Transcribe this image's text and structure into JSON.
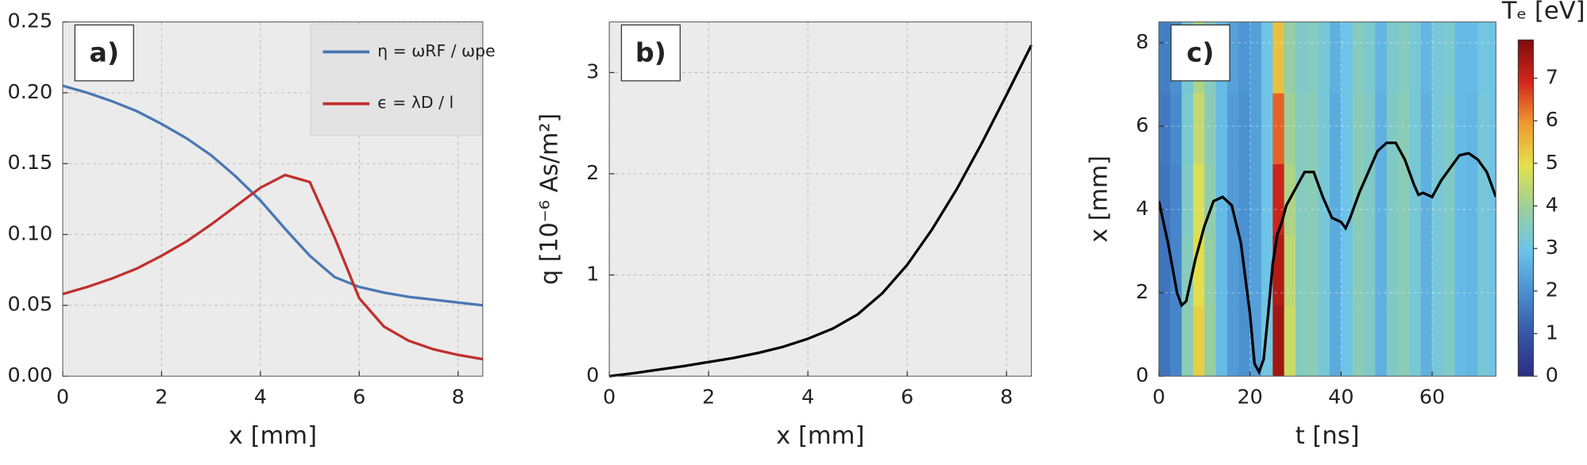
{
  "chart_data": [
    {
      "type": "line",
      "panel_label": "a)",
      "xlabel": "x [mm]",
      "x": [
        0,
        0.5,
        1,
        1.5,
        2,
        2.5,
        3,
        3.5,
        4,
        4.5,
        5,
        5.5,
        6,
        6.5,
        7,
        7.5,
        8,
        8.5
      ],
      "series": [
        {
          "name": "η = ωRF / ωpe",
          "color": "#4a77b4",
          "values": [
            0.205,
            0.2,
            0.194,
            0.187,
            0.178,
            0.168,
            0.156,
            0.141,
            0.124,
            0.104,
            0.085,
            0.07,
            0.063,
            0.059,
            0.056,
            0.054,
            0.052,
            0.05
          ]
        },
        {
          "name": "ϵ = λD / l",
          "color": "#c0302e",
          "values": [
            0.058,
            0.063,
            0.069,
            0.076,
            0.085,
            0.095,
            0.107,
            0.12,
            0.133,
            0.142,
            0.137,
            0.098,
            0.055,
            0.035,
            0.025,
            0.019,
            0.015,
            0.012
          ]
        }
      ],
      "xlim": [
        0,
        8.5
      ],
      "xticks": [
        0,
        2,
        4,
        6,
        8
      ],
      "ylim": [
        0,
        0.25
      ],
      "yticks": [
        {
          "value": 0,
          "label": "0.00"
        },
        0.05,
        {
          "value": 0.1,
          "label": "0.10"
        },
        0.15,
        {
          "value": 0.2,
          "label": "0.20"
        },
        0.25
      ],
      "grid": true,
      "legend": "upper right"
    },
    {
      "type": "line",
      "panel_label": "b)",
      "xlabel": "x [mm]",
      "ylabel": "q [10⁻⁶ As/m²]",
      "x": [
        0,
        0.5,
        1,
        1.5,
        2,
        2.5,
        3,
        3.5,
        4,
        4.5,
        5,
        5.5,
        6,
        6.5,
        7,
        7.5,
        8,
        8.5
      ],
      "series": [
        {
          "color": "#000000",
          "values": [
            0,
            0.03,
            0.065,
            0.1,
            0.14,
            0.18,
            0.23,
            0.29,
            0.37,
            0.47,
            0.61,
            0.82,
            1.1,
            1.45,
            1.85,
            2.3,
            2.78,
            3.27
          ]
        }
      ],
      "xlim": [
        0,
        8.5
      ],
      "xticks": [
        0,
        2,
        4,
        6,
        8
      ],
      "ylim": [
        0,
        3.5
      ],
      "yticks": [
        0,
        1,
        2,
        3
      ],
      "grid": true
    },
    {
      "type": "heatmap",
      "panel_label": "c)",
      "xlabel": "t [ns]",
      "ylabel": "x [mm]",
      "colorbar_label": "Tₑ [eV]",
      "heatmap": {
        "t": [
          1.25,
          3.75,
          6.25,
          8.75,
          11.25,
          13.75,
          16.25,
          18.75,
          21.25,
          23.75,
          26.25,
          28.75,
          31.25,
          33.75,
          36.25,
          38.75,
          41.25,
          43.75,
          46.25,
          48.75,
          51.25,
          53.75,
          56.25,
          58.75,
          61.25,
          63.75,
          66.25,
          68.75,
          71.25,
          73.75
        ],
        "x": [
          0.85,
          2.55,
          4.25,
          5.95,
          7.65
        ],
        "z": [
          [
            1.5,
            1.8,
            3.6,
            5.2,
            3.9,
            2.8,
            2.2,
            2.0,
            2.3,
            3.1,
            7.5,
            4.6,
            3.5,
            3.6,
            3.2,
            2.5,
            3.0,
            3.6,
            3.4,
            2.6,
            3.4,
            3.6,
            3.2,
            2.6,
            3.2,
            3.4,
            2.8,
            2.7,
            3.2,
            3.0
          ],
          [
            1.5,
            1.8,
            3.5,
            5.0,
            3.8,
            2.8,
            2.2,
            2.0,
            2.3,
            3.0,
            7.3,
            4.4,
            3.5,
            3.6,
            3.2,
            2.5,
            3.0,
            3.6,
            3.4,
            2.6,
            3.4,
            3.6,
            3.2,
            2.6,
            3.2,
            3.4,
            2.8,
            2.7,
            3.2,
            3.0
          ],
          [
            1.5,
            1.8,
            3.4,
            4.8,
            3.7,
            2.8,
            2.2,
            2.0,
            2.3,
            3.0,
            7.0,
            4.2,
            3.5,
            3.6,
            3.2,
            2.5,
            3.0,
            3.6,
            3.4,
            2.6,
            3.4,
            3.6,
            3.2,
            2.6,
            3.2,
            3.4,
            2.8,
            2.7,
            3.2,
            3.0
          ],
          [
            1.6,
            1.9,
            3.3,
            4.5,
            3.6,
            2.8,
            2.2,
            2.0,
            2.3,
            3.0,
            6.4,
            4.0,
            3.5,
            3.6,
            3.2,
            2.5,
            3.0,
            3.6,
            3.4,
            2.6,
            3.4,
            3.6,
            3.2,
            2.6,
            3.2,
            3.4,
            2.8,
            2.7,
            3.2,
            3.0
          ],
          [
            1.7,
            2.0,
            3.2,
            4.2,
            3.5,
            2.8,
            2.3,
            2.1,
            2.3,
            3.0,
            5.4,
            3.8,
            3.4,
            3.5,
            3.2,
            2.6,
            3.0,
            3.5,
            3.3,
            2.7,
            3.3,
            3.5,
            3.2,
            2.7,
            3.2,
            3.3,
            2.8,
            2.8,
            3.1,
            3.0
          ]
        ]
      },
      "colormap": [
        "#2c2d84",
        "#3557a6",
        "#4a8fd0",
        "#6cc4ea",
        "#9bd09a",
        "#e3e14c",
        "#f19a32",
        "#d2261c",
        "#7f0d0d"
      ],
      "zlim": [
        0,
        7.9
      ],
      "zticks": [
        0,
        1,
        2,
        3,
        4,
        5,
        6,
        7
      ],
      "x": [
        0,
        2,
        4,
        5,
        6,
        8,
        10,
        12,
        14,
        16,
        18,
        20,
        21,
        22,
        23,
        24,
        25,
        26,
        27,
        28,
        30,
        32,
        34,
        36,
        38,
        40,
        41,
        42,
        44,
        46,
        48,
        50,
        52,
        54,
        56,
        57,
        58,
        60,
        62,
        64,
        66,
        68,
        70,
        72,
        74
      ],
      "series": [
        {
          "color": "#000000",
          "values": [
            4.2,
            3.2,
            2.0,
            1.7,
            1.8,
            2.8,
            3.6,
            4.2,
            4.3,
            4.1,
            3.2,
            1.5,
            0.3,
            0.1,
            0.4,
            1.5,
            2.7,
            3.4,
            3.7,
            4.1,
            4.5,
            4.9,
            4.9,
            4.3,
            3.8,
            3.7,
            3.55,
            3.8,
            4.4,
            4.9,
            5.4,
            5.6,
            5.6,
            5.2,
            4.6,
            4.35,
            4.4,
            4.3,
            4.7,
            5.0,
            5.3,
            5.35,
            5.2,
            4.9,
            4.3
          ]
        }
      ],
      "xlim": [
        0,
        74
      ],
      "xticks": [
        0,
        20,
        40,
        60
      ],
      "ylim": [
        0,
        8.5
      ],
      "yticks": [
        0,
        2,
        4,
        6,
        8
      ],
      "grid": true
    }
  ]
}
